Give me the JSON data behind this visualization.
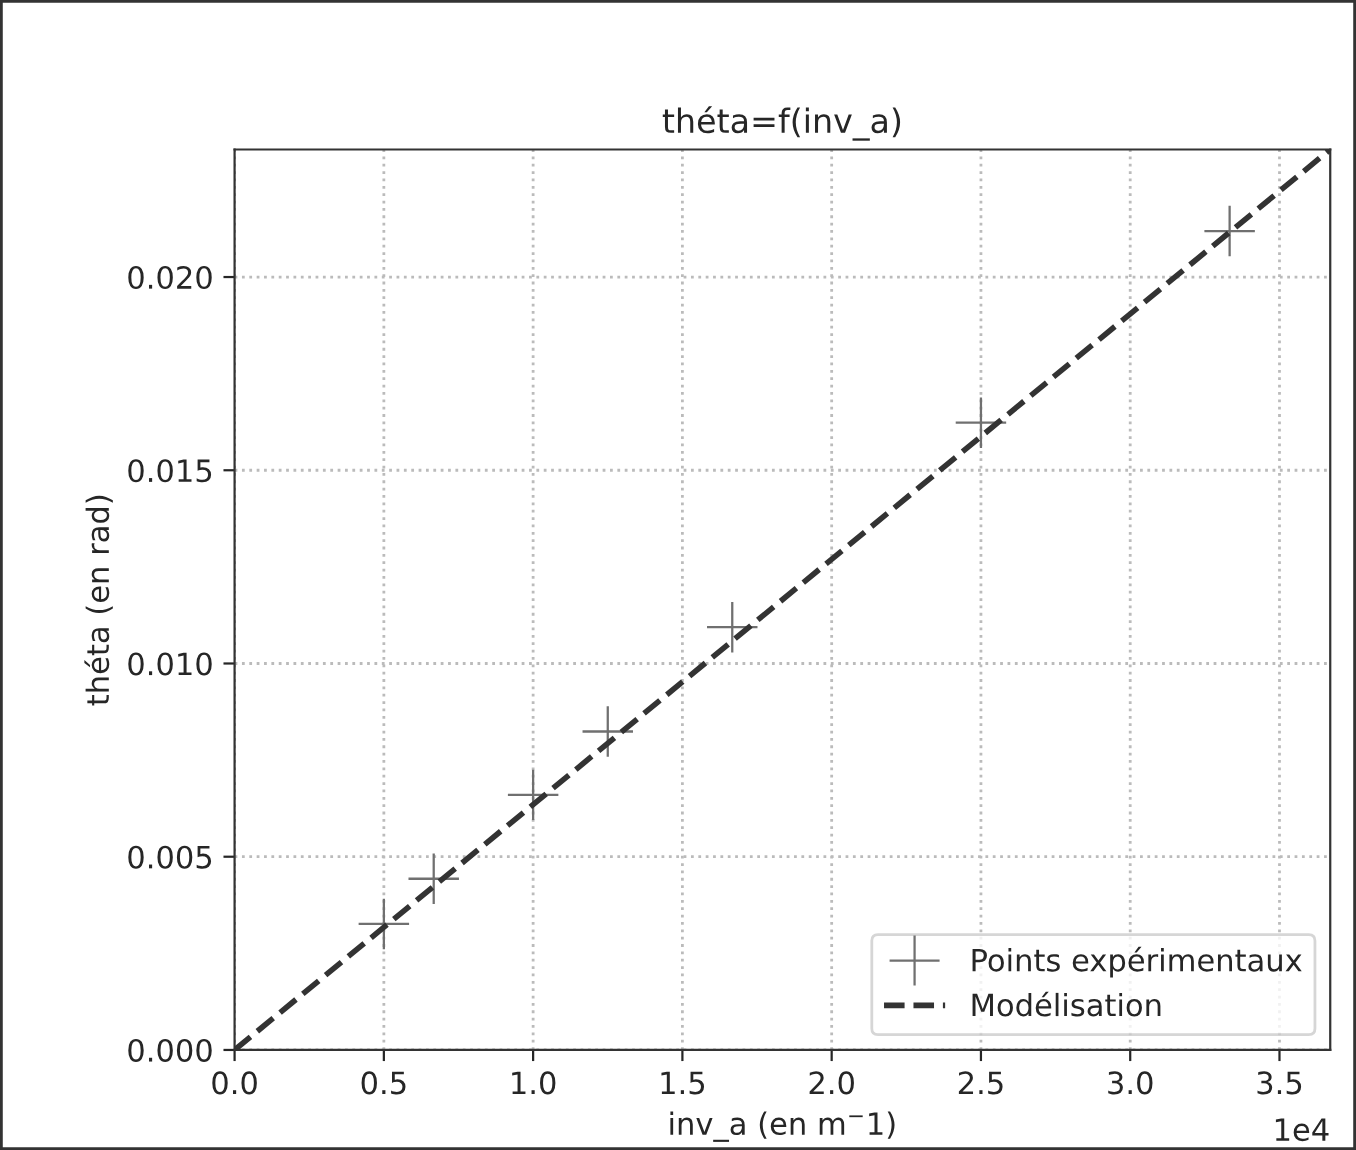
{
  "chart_data": {
    "type": "scatter",
    "title": "théta=f(inv_a)",
    "xlabel": "inv_a (en m$^{−}$1)",
    "ylabel": "théta (en rad)",
    "annotations": [
      "1e4"
    ],
    "series": [
      {
        "name": "Points expérimentaux",
        "color": "#707070",
        "marker": "cross",
        "x": [
          0.5,
          0.667,
          1.0,
          1.25,
          1.667,
          2.5,
          3.333
        ],
        "values": [
          0.00326,
          0.00443,
          0.0066,
          0.00824,
          0.01094,
          0.01623,
          0.02119
        ]
      },
      {
        "name": "Modélisation",
        "type": "line",
        "color": "#333333",
        "line_style": "dashed",
        "x": [
          0,
          3.67
        ],
        "values": [
          0,
          0.0233
        ]
      }
    ],
    "xlim": [
      0,
      3.67
    ],
    "ylim": [
      0,
      0.0233
    ],
    "xticks": [
      {
        "value": 0,
        "label": "0.0"
      },
      0.5,
      {
        "value": 1,
        "label": "1.0"
      },
      1.5,
      {
        "value": 2,
        "label": "2.0"
      },
      2.5,
      {
        "value": 3,
        "label": "3.0"
      },
      3.5
    ],
    "yticks": [
      {
        "value": 0,
        "label": "0.000"
      },
      {
        "value": 0.005,
        "label": "0.005"
      },
      {
        "value": 0.01,
        "label": "0.010"
      },
      {
        "value": 0.015,
        "label": "0.015"
      },
      {
        "value": 0.02,
        "label": "0.020"
      }
    ],
    "grid": true,
    "legend": "bottom right"
  }
}
